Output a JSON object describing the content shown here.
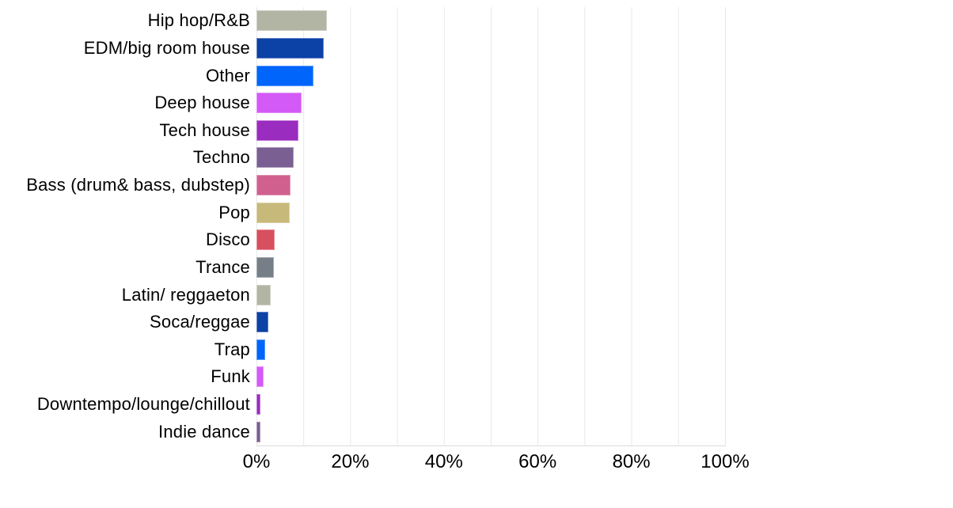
{
  "chart_data": {
    "type": "bar",
    "orientation": "horizontal",
    "title": "",
    "xlabel": "",
    "ylabel": "",
    "unit": "%",
    "categories": [
      "Hip hop/R&B",
      "EDM/big room house",
      "Other",
      "Deep house",
      "Tech house",
      "Techno",
      "Bass (drum& bass, dubstep)",
      "Pop",
      "Disco",
      "Trance",
      "Latin/ reggaeton",
      "Soca/reggae",
      "Trap",
      "Funk",
      "Downtempo/lounge/chillout",
      "Indie dance"
    ],
    "values": [
      15.0,
      14.4,
      12.1,
      9.6,
      9.0,
      7.9,
      7.3,
      7.1,
      3.9,
      3.8,
      3.1,
      2.5,
      1.9,
      1.5,
      0.9,
      0.8
    ],
    "bar_colors": [
      "#b3b5a4",
      "#0c41a5",
      "#0065fa",
      "#d45af7",
      "#9b2cc0",
      "#7a5f93",
      "#d0618f",
      "#c7b97a",
      "#d84f5f",
      "#767e87",
      "#b3b5a4",
      "#0c41a5",
      "#0065fa",
      "#d45af7",
      "#9b2cc0",
      "#7a5f93"
    ],
    "palette_cycle": [
      "#b3b5a4",
      "#0c41a5",
      "#0065fa",
      "#d45af7",
      "#9b2cc0",
      "#7a5f93",
      "#d0618f",
      "#c7b97a",
      "#d84f5f",
      "#767e87"
    ],
    "xlim": [
      0,
      100
    ],
    "x_ticks": [
      {
        "label": "0%",
        "value": 0
      },
      {
        "label": "20%",
        "value": 20
      },
      {
        "label": "40%",
        "value": 40
      },
      {
        "label": "60%",
        "value": 60
      },
      {
        "label": "80%",
        "value": 80
      },
      {
        "label": "100%",
        "value": 100
      }
    ],
    "grid": {
      "vertical_every": 10,
      "color": "#e9e9e9",
      "horizontal": false
    },
    "legend": "none",
    "background": "#ffffff",
    "text_color": "#000000"
  }
}
